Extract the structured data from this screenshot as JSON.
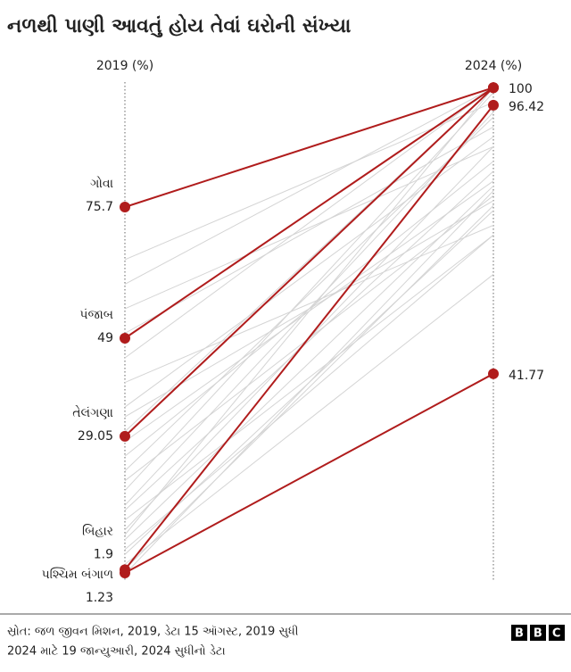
{
  "chart_data": {
    "type": "slope",
    "title": "નળથી પાણી આવતું હોય તેવાં ઘરોની સંખ્યા",
    "categories": [
      "2019 (%)",
      "2024 (%)"
    ],
    "ylim": [
      0,
      100
    ],
    "highlight_color": "#b01c1c",
    "background_color": "#d4d4d4",
    "series": [
      {
        "name": "ગોવા",
        "values": [
          75.7,
          100
        ]
      },
      {
        "name": "પંજાબ",
        "values": [
          49,
          100
        ]
      },
      {
        "name": "તેલંગણા",
        "values": [
          29.05,
          100
        ]
      },
      {
        "name": "બિહાર",
        "values": [
          1.9,
          96.42
        ]
      },
      {
        "name": "પશ્ચિમ બંગાળ",
        "values": [
          1.23,
          41.77
        ]
      }
    ],
    "background_series": [
      {
        "values": [
          45,
          100
        ]
      },
      {
        "values": [
          60,
          100
        ]
      },
      {
        "values": [
          30,
          100
        ]
      },
      {
        "values": [
          10,
          88
        ]
      },
      {
        "values": [
          5,
          75
        ]
      },
      {
        "values": [
          20,
          78
        ]
      },
      {
        "values": [
          35,
          90
        ]
      },
      {
        "values": [
          12,
          70
        ]
      },
      {
        "values": [
          50,
          92
        ]
      },
      {
        "values": [
          3,
          62
        ]
      },
      {
        "values": [
          8,
          80
        ]
      },
      {
        "values": [
          25,
          85
        ]
      },
      {
        "values": [
          15,
          95
        ]
      },
      {
        "values": [
          40,
          72
        ]
      },
      {
        "values": [
          55,
          88
        ]
      },
      {
        "values": [
          18,
          99
        ]
      },
      {
        "values": [
          2,
          76
        ]
      },
      {
        "values": [
          6,
          70
        ]
      },
      {
        "values": [
          28,
          81
        ]
      },
      {
        "values": [
          65,
          97
        ]
      },
      {
        "values": [
          33,
          77
        ]
      },
      {
        "values": [
          9,
          100
        ]
      },
      {
        "values": [
          22,
          94
        ]
      },
      {
        "values": [
          1,
          79
        ]
      },
      {
        "values": [
          14,
          83
        ]
      }
    ],
    "source": [
      "સ્રોત: જળ જીવન મિશન, 2019, ડેટા 15 ઑગસ્ટ, 2019 સુધી",
      "2024 માટે 19 જાન્યુઆરી, 2024 સુધીનો ડેટા"
    ],
    "logo": "BBC"
  }
}
